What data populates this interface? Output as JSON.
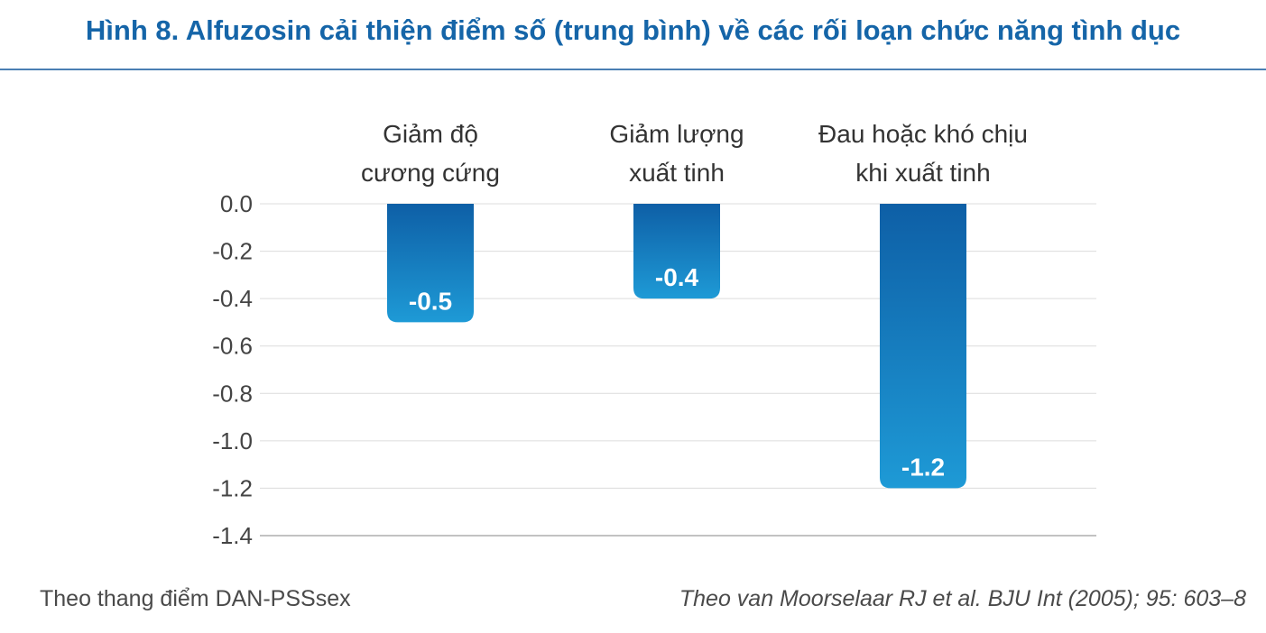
{
  "chart_data": {
    "type": "bar",
    "title": "Hình 8. Alfuzosin cải thiện điểm số (trung bình) về các rối loạn chức năng tình dục",
    "categories": [
      [
        "Giảm độ",
        "cương cứng"
      ],
      [
        "Giảm lượng",
        "xuất tinh"
      ],
      [
        "Đau hoặc khó chịu",
        "khi xuất tinh"
      ]
    ],
    "values": [
      -0.5,
      -0.4,
      -1.2
    ],
    "data_labels": [
      "-0.5",
      "-0.4",
      "-1.2"
    ],
    "ylim": [
      -1.4,
      0.0
    ],
    "yticks": [
      "0.0",
      "-0.2",
      "-0.4",
      "-0.6",
      "-0.8",
      "-1.0",
      "-1.2",
      "-1.4"
    ],
    "ytick_values": [
      0.0,
      -0.2,
      -0.4,
      -0.6,
      -0.8,
      -1.0,
      -1.2,
      -1.4
    ],
    "grid": true,
    "xlabel": "",
    "ylabel": "",
    "colors": {
      "bar_top": "#0e5fa6",
      "bar_bottom": "#1e9ad6",
      "title": "#1565a8"
    }
  },
  "footer": {
    "left": "Theo thang điểm DAN-PSSsex",
    "right": "Theo van Moorselaar RJ et al. BJU Int (2005); 95: 603–8"
  }
}
